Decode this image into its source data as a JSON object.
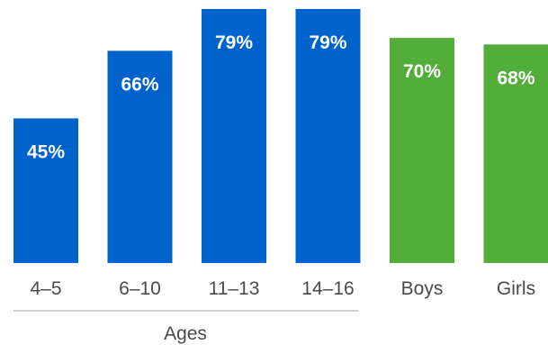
{
  "chart_data": {
    "type": "bar",
    "categories": [
      "4–5",
      "6–10",
      "11–13",
      "14–16",
      "Boys",
      "Girls"
    ],
    "values": [
      45,
      66,
      79,
      79,
      70,
      68
    ],
    "value_labels": [
      "45%",
      "66%",
      "79%",
      "79%",
      "70%",
      "68%"
    ],
    "colors": [
      "#0063cc",
      "#0063cc",
      "#0063cc",
      "#0063cc",
      "#52ad3a",
      "#52ad3a"
    ],
    "ylim": [
      0,
      79
    ],
    "grid": false,
    "legend": "none",
    "group_label": "Ages",
    "title": "",
    "xlabel": "",
    "ylabel": ""
  }
}
